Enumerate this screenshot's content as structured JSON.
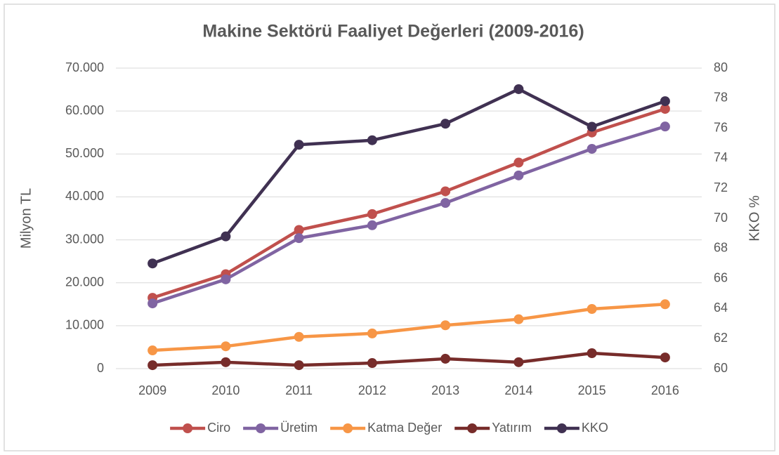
{
  "chart_data": {
    "type": "line",
    "title": "Makine Sektörü Faaliyet Değerleri (2009-2016)",
    "y_label": "Milyon TL",
    "y2_label": "KKO %",
    "categories": [
      "2009",
      "2010",
      "2011",
      "2012",
      "2013",
      "2014",
      "2015",
      "2016"
    ],
    "series": [
      {
        "name": "Ciro",
        "color": "#c0504d",
        "values": [
          16500,
          22000,
          32300,
          36000,
          41300,
          48000,
          55000,
          60500
        ]
      },
      {
        "name": "Üretim",
        "color": "#8064a2",
        "values": [
          15200,
          20800,
          30400,
          33400,
          38600,
          45000,
          51200,
          56400
        ]
      },
      {
        "name": "Katma Değer",
        "color": "#f79646",
        "values": [
          4250,
          5200,
          7400,
          8200,
          10100,
          11500,
          13900,
          15000
        ]
      },
      {
        "name": "Yatırım",
        "color": "#772c2a",
        "values": [
          800,
          1500,
          800,
          1300,
          2300,
          1500,
          3600,
          2600
        ]
      },
      {
        "name": "KKO",
        "color": "#403152",
        "axis": "y2",
        "values": [
          67.0,
          68.8,
          74.9,
          75.2,
          76.3,
          78.6,
          76.1,
          77.8
        ]
      }
    ],
    "ylim": [
      0,
      70000
    ],
    "yticks": [
      0,
      {
        "value": 10000,
        "label": "10.000"
      },
      {
        "value": 20000,
        "label": "20.000"
      },
      {
        "value": 30000,
        "label": "30.000"
      },
      {
        "value": 40000,
        "label": "40.000"
      },
      {
        "value": 50000,
        "label": "50.000"
      },
      {
        "value": 60000,
        "label": "60.000"
      },
      {
        "value": 70000,
        "label": "70.000"
      }
    ],
    "y2lim": [
      60,
      80
    ],
    "y2ticks": [
      60,
      62,
      64,
      66,
      68,
      70,
      72,
      74,
      76,
      78,
      80
    ],
    "grid": true,
    "legend": "bottom"
  }
}
